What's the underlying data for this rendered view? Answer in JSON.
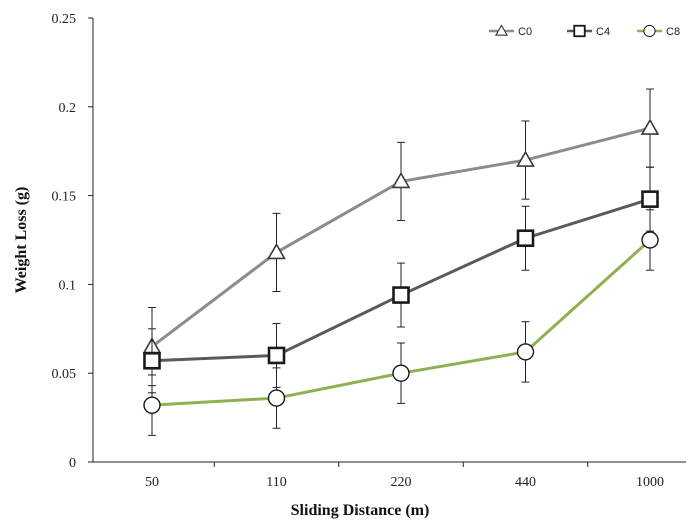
{
  "chart_data": {
    "type": "line",
    "title": "",
    "xlabel": "Sliding Distance (m)",
    "ylabel": "Weight Loss (g)",
    "categories": [
      "50",
      "110",
      "220",
      "440",
      "1000"
    ],
    "ylim": [
      0,
      0.25
    ],
    "yticks": [
      0,
      0.05,
      0.1,
      0.15,
      0.2,
      0.25
    ],
    "ytick_labels": [
      "0",
      "0.05",
      "0.1",
      "0.15",
      "0.2",
      "0.25"
    ],
    "grid": false,
    "legend_position": "top-right",
    "series": [
      {
        "name": "C0",
        "values": [
          0.065,
          0.118,
          0.158,
          0.17,
          0.188
        ],
        "errors": [
          0.022,
          0.022,
          0.022,
          0.022,
          0.022
        ],
        "marker": "triangle",
        "color": "#8c8c8c"
      },
      {
        "name": "C4",
        "values": [
          0.057,
          0.06,
          0.094,
          0.126,
          0.148
        ],
        "errors": [
          0.018,
          0.018,
          0.018,
          0.018,
          0.018
        ],
        "marker": "square",
        "color": "#5a5a5a"
      },
      {
        "name": "C8",
        "values": [
          0.032,
          0.036,
          0.05,
          0.062,
          0.125
        ],
        "errors": [
          0.017,
          0.017,
          0.017,
          0.017,
          0.017
        ],
        "marker": "circle",
        "color": "#8fb050"
      }
    ]
  }
}
